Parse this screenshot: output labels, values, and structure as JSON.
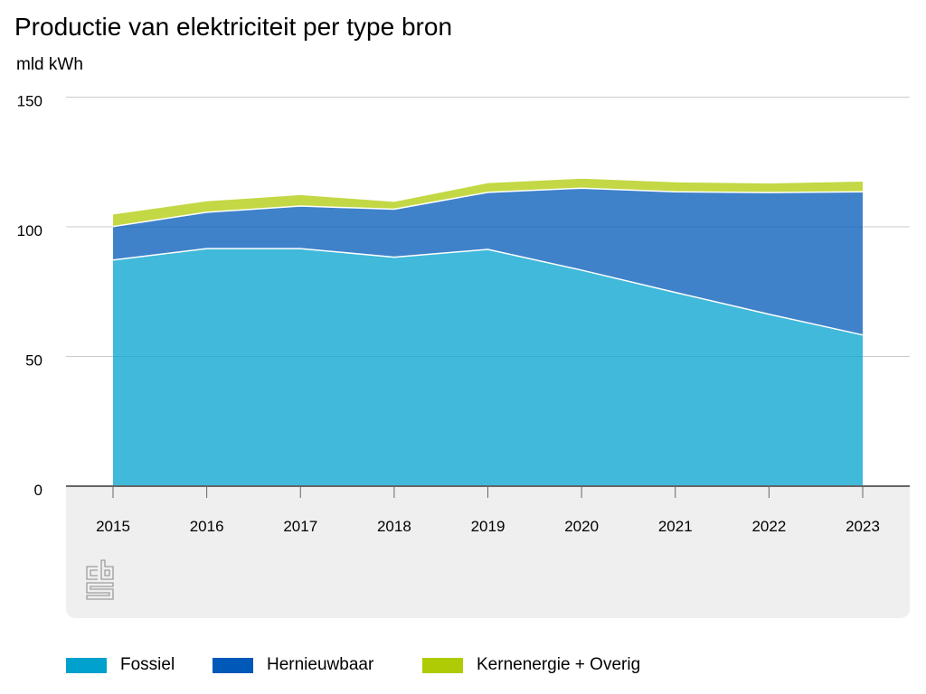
{
  "chart_data": {
    "type": "area",
    "stacked": true,
    "title": "Productie van elektriciteit per type bron",
    "ylabel": "mld kWh",
    "x": [
      "2015",
      "2016",
      "2017",
      "2018",
      "2019",
      "2020",
      "2021",
      "2022",
      "2023"
    ],
    "ylim": [
      0,
      150
    ],
    "yticks": [
      0,
      50,
      100,
      150
    ],
    "grid": true,
    "series": [
      {
        "name": "Fossiel",
        "color": "#00a1cd",
        "values": [
          87.2,
          91.6,
          91.6,
          88.3,
          91.3,
          83.3,
          74.7,
          66.3,
          58.3
        ]
      },
      {
        "name": "Hernieuwbaar",
        "color": "#0058b8",
        "values": [
          12.9,
          14.0,
          16.4,
          18.5,
          22.0,
          31.6,
          38.8,
          46.9,
          55.2
        ]
      },
      {
        "name": "Kernenergie + Overig",
        "color": "#afcb05",
        "values": [
          4.9,
          4.5,
          4.5,
          3.1,
          3.8,
          3.9,
          3.9,
          3.8,
          4.2
        ]
      }
    ]
  },
  "logo": {
    "icon": "cbs-logo",
    "lettering": "cbs"
  }
}
